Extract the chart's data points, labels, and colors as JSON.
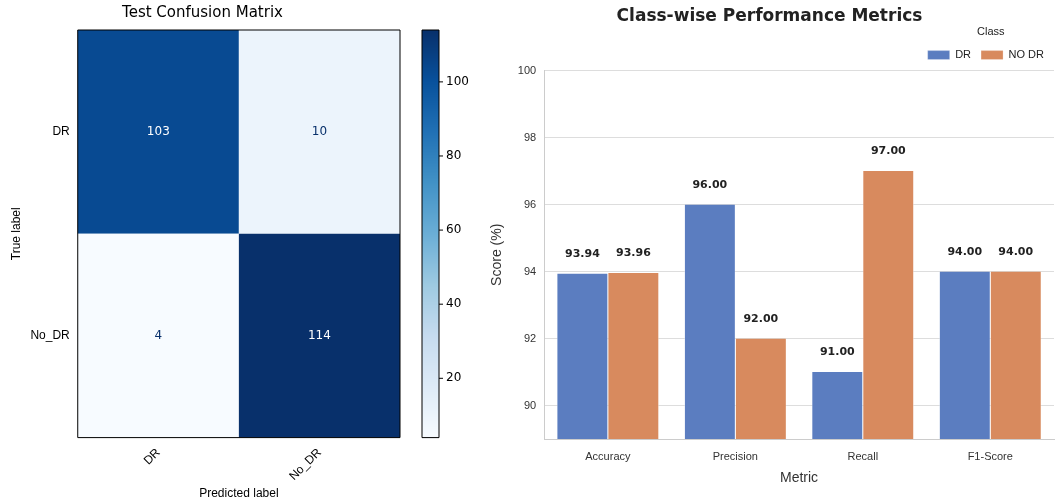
{
  "chart_data": [
    {
      "type": "heatmap",
      "title": "Test Confusion Matrix",
      "xlabel": "Predicted label",
      "ylabel": "True label",
      "categories": [
        "DR",
        "No_DR"
      ],
      "y_categories": [
        "DR",
        "No_DR"
      ],
      "cells": [
        [
          103,
          10
        ],
        [
          4,
          114
        ]
      ],
      "data_labels": true,
      "clim": [
        4,
        114
      ],
      "cticks": [
        20,
        40,
        60,
        80,
        100
      ]
    },
    {
      "type": "bar",
      "title": "Class-wise Performance Metrics",
      "xlabel": "Metric",
      "ylabel": "Score (%)",
      "legend_title": "Class",
      "categories": [
        "Accuracy",
        "Precision",
        "Recall",
        "F1-Score"
      ],
      "series": [
        {
          "name": "DR",
          "color": "#5b7dc0",
          "values": [
            93.94,
            96.0,
            91.0,
            94.0
          ],
          "value_labels": [
            "93.94",
            "96.00",
            "91.00",
            "94.00"
          ]
        },
        {
          "name": "NO DR",
          "color": "#d88a5e",
          "values": [
            93.96,
            92.0,
            97.0,
            94.0
          ],
          "value_labels": [
            "93.96",
            "92.00",
            "97.00",
            "94.00"
          ]
        }
      ],
      "ylim": [
        89,
        100
      ],
      "yticks": [
        90,
        92,
        94,
        96,
        98,
        100
      ],
      "grid": "y",
      "legend": "top right"
    }
  ]
}
